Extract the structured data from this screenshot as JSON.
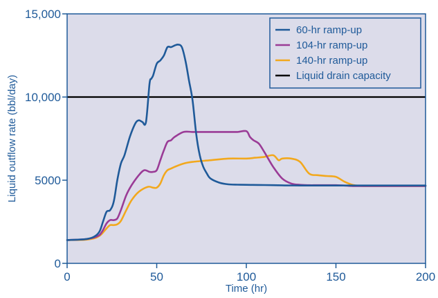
{
  "chart_data": {
    "type": "line",
    "xlabel": "Time (hr)",
    "ylabel": "Liquid outflow rate (bbl/day)",
    "xlim": [
      0,
      200
    ],
    "ylim": [
      0,
      15000
    ],
    "x_ticks": [
      0,
      50,
      100,
      150,
      200
    ],
    "x_tick_labels": [
      "0",
      "50",
      "100",
      "150",
      "200"
    ],
    "y_ticks": [
      0,
      5000,
      10000,
      15000
    ],
    "y_tick_labels": [
      "0",
      "5000",
      "10,000",
      "15,000"
    ],
    "plot_background": "#dcdcea",
    "legend_position": "top-right",
    "series": [
      {
        "name": "60-hr ramp-up",
        "color": "#1f5a99",
        "x": [
          0,
          10,
          15,
          18,
          20,
          22,
          24,
          26,
          28,
          30,
          32,
          35,
          38,
          40,
          42,
          44,
          46,
          47,
          48,
          50,
          52,
          54,
          56,
          58,
          60,
          62,
          64,
          66,
          68,
          70,
          72,
          74,
          76,
          78,
          80,
          85,
          90,
          95,
          100,
          110,
          120,
          130,
          140,
          150,
          160,
          170,
          180,
          190,
          200
        ],
        "y": [
          1400,
          1450,
          1600,
          1900,
          2500,
          3100,
          3200,
          3700,
          5000,
          6000,
          6500,
          7600,
          8400,
          8600,
          8500,
          8500,
          10800,
          11100,
          11300,
          12000,
          12200,
          12500,
          13000,
          13000,
          13100,
          13150,
          13000,
          12200,
          11000,
          9800,
          7800,
          6500,
          5800,
          5400,
          5100,
          4850,
          4750,
          4730,
          4720,
          4710,
          4690,
          4680,
          4680,
          4680,
          4680,
          4680,
          4680,
          4680,
          4680
        ]
      },
      {
        "name": "104-hr ramp-up",
        "color": "#9a3b96",
        "x": [
          0,
          10,
          15,
          18,
          20,
          22,
          24,
          26,
          28,
          30,
          33,
          36,
          40,
          43,
          46,
          48,
          50,
          52,
          54,
          56,
          58,
          60,
          65,
          70,
          75,
          80,
          85,
          90,
          95,
          100,
          102,
          104,
          107,
          110,
          115,
          120,
          125,
          130,
          135,
          140,
          150,
          160,
          170,
          180,
          190,
          200
        ],
        "y": [
          1400,
          1450,
          1550,
          1700,
          2000,
          2400,
          2600,
          2600,
          2700,
          3200,
          4100,
          4700,
          5300,
          5600,
          5500,
          5500,
          5600,
          6200,
          6800,
          7300,
          7400,
          7600,
          7900,
          7900,
          7900,
          7900,
          7900,
          7900,
          7900,
          7950,
          7600,
          7400,
          7200,
          6700,
          5800,
          5100,
          4800,
          4720,
          4700,
          4700,
          4700,
          4650,
          4650,
          4650,
          4650,
          4650
        ]
      },
      {
        "name": "140-hr ramp-up",
        "color": "#f2a81d",
        "x": [
          0,
          10,
          15,
          18,
          20,
          22,
          24,
          26,
          28,
          30,
          33,
          36,
          40,
          45,
          48,
          50,
          52,
          54,
          56,
          58,
          60,
          65,
          70,
          80,
          90,
          100,
          105,
          110,
          115,
          118,
          120,
          125,
          130,
          135,
          140,
          145,
          150,
          155,
          160,
          165,
          170,
          180,
          190,
          200
        ],
        "y": [
          1400,
          1420,
          1500,
          1650,
          1850,
          2100,
          2300,
          2300,
          2350,
          2550,
          3200,
          3800,
          4300,
          4600,
          4550,
          4550,
          4800,
          5300,
          5600,
          5700,
          5800,
          6000,
          6100,
          6200,
          6300,
          6300,
          6350,
          6400,
          6500,
          6200,
          6300,
          6300,
          6100,
          5400,
          5300,
          5250,
          5200,
          4900,
          4700,
          4650,
          4650,
          4650,
          4650,
          4650
        ]
      }
    ],
    "reference_lines": [
      {
        "name": "Liquid drain capacity",
        "y": 10000,
        "color": "#000000"
      }
    ]
  }
}
